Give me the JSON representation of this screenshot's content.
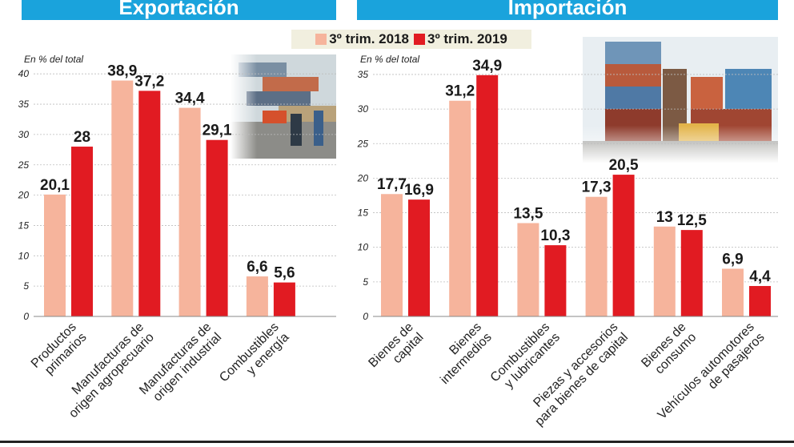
{
  "banners": {
    "left": "Exportación",
    "right": "Importación"
  },
  "legend": [
    {
      "label": "3º trim. 2018",
      "color": "#f6b49c"
    },
    {
      "label": "3º trim. 2019",
      "color": "#e11b22"
    }
  ],
  "chart_data": [
    {
      "type": "bar",
      "title": "Exportación",
      "ylabel": "En % del total",
      "ylim": [
        0,
        40
      ],
      "yticks": [
        0,
        5,
        10,
        15,
        20,
        25,
        30,
        35,
        40
      ],
      "categories": [
        [
          "Productos",
          "primarios"
        ],
        [
          "Manufacturas de",
          "origen agropecuario"
        ],
        [
          "Manufacturas de",
          "origen industrial"
        ],
        [
          "Combustibles",
          "y energía"
        ]
      ],
      "series": [
        {
          "name": "3º trim. 2018",
          "values": [
            20.1,
            38.9,
            34.4,
            6.6
          ],
          "labels": [
            "20,1",
            "38,9",
            "34,4",
            "6,6"
          ]
        },
        {
          "name": "3º trim. 2019",
          "values": [
            28,
            37.2,
            29.1,
            5.6
          ],
          "labels": [
            "28",
            "37,2",
            "29,1",
            "5,6"
          ]
        }
      ]
    },
    {
      "type": "bar",
      "title": "Importación",
      "ylabel": "En % del total",
      "ylim": [
        0,
        35
      ],
      "yticks": [
        0,
        5,
        10,
        15,
        20,
        25,
        30,
        35
      ],
      "categories": [
        [
          "Bienes de",
          "capital"
        ],
        [
          "Bienes",
          "intermedios"
        ],
        [
          "Combustibles",
          "y lubricantes"
        ],
        [
          "Piezas y accesorios",
          "para bienes de capital"
        ],
        [
          "Bienes de",
          "consumo"
        ],
        [
          "Vehículos automotores",
          "de pasajeros"
        ]
      ],
      "series": [
        {
          "name": "3º trim. 2018",
          "values": [
            17.7,
            31.2,
            13.5,
            17.3,
            13,
            6.9
          ],
          "labels": [
            "17,7",
            "31,2",
            "13,5",
            "17,3",
            "13",
            "6,9"
          ]
        },
        {
          "name": "3º trim. 2019",
          "values": [
            16.9,
            34.9,
            10.3,
            20.5,
            12.5,
            4.4
          ],
          "labels": [
            "16,9",
            "34,9",
            "10,3",
            "20,5",
            "12,5",
            "4,4"
          ]
        }
      ]
    }
  ]
}
